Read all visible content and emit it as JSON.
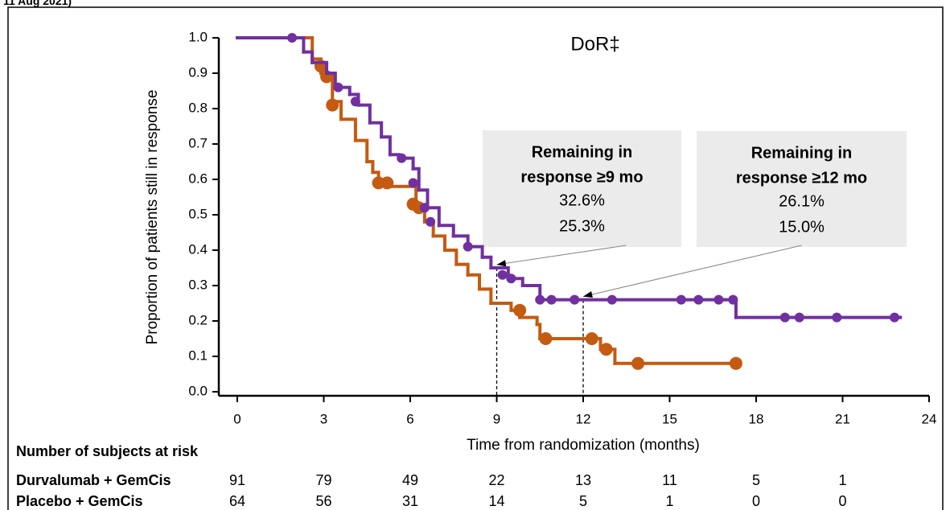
{
  "header": "11 Aug 2021)",
  "chart_data": {
    "type": "step",
    "title": "DoR‡",
    "x_label": "Time from randomization (months)",
    "y_label": "Proportion of patients still in response",
    "xlim": [
      0,
      24
    ],
    "ylim": [
      0,
      1
    ],
    "xticks": [
      0,
      3,
      6,
      9,
      12,
      15,
      18,
      21,
      24
    ],
    "yticks": [
      {
        "value": 0,
        "label": "0.0"
      },
      {
        "value": 0.1,
        "label": "0.1"
      },
      {
        "value": 0.2,
        "label": "0.2"
      },
      {
        "value": 0.3,
        "label": "0.3"
      },
      {
        "value": 0.4,
        "label": "0.4"
      },
      {
        "value": 0.5,
        "label": "0.5"
      },
      {
        "value": 0.6,
        "label": "0.6"
      },
      {
        "value": 0.7,
        "label": "0.7"
      },
      {
        "value": 0.8,
        "label": "0.8"
      },
      {
        "value": 0.9,
        "label": "0.9"
      },
      {
        "value": 1,
        "label": "1.0"
      }
    ],
    "series": [
      {
        "name": "Durvalumab + GemCis",
        "color": "#7030a0",
        "x": [
          0,
          1.9,
          2.3,
          2.6,
          3.1,
          3.4,
          3.9,
          4.2,
          4.6,
          5.0,
          5.3,
          5.6,
          6.1,
          6.3,
          6.6,
          7.0,
          7.5,
          8.0,
          8.5,
          8.8,
          9.4,
          9.9,
          10.5,
          16.9,
          17.3,
          23
        ],
        "y": [
          1.0,
          1.0,
          0.96,
          0.93,
          0.9,
          0.86,
          0.84,
          0.81,
          0.76,
          0.72,
          0.67,
          0.66,
          0.63,
          0.57,
          0.52,
          0.47,
          0.44,
          0.41,
          0.38,
          0.35,
          0.32,
          0.3,
          0.26,
          0.26,
          0.21,
          0.21
        ],
        "censored_x": [
          1.9,
          3.5,
          4.1,
          5.7,
          6.1,
          6.5,
          6.7,
          8.0,
          9.2,
          9.5,
          10.5,
          10.9,
          11.7,
          13.0,
          15.4,
          16.0,
          16.7,
          17.2,
          19.0,
          19.5,
          20.8,
          22.8
        ],
        "censored_y": [
          1.0,
          0.86,
          0.82,
          0.66,
          0.59,
          0.52,
          0.48,
          0.41,
          0.33,
          0.32,
          0.26,
          0.26,
          0.26,
          0.26,
          0.26,
          0.26,
          0.26,
          0.26,
          0.21,
          0.21,
          0.21,
          0.21
        ],
        "at_risk": [
          91,
          79,
          49,
          22,
          13,
          11,
          5,
          1
        ]
      },
      {
        "name": "Placebo + GemCis",
        "color": "#c55a11",
        "x": [
          0,
          2.2,
          2.6,
          2.9,
          3.3,
          3.6,
          4.1,
          4.5,
          4.7,
          4.9,
          5.3,
          6.2,
          6.5,
          6.8,
          7.2,
          7.6,
          8.0,
          8.4,
          8.8,
          9.5,
          9.8,
          10.4,
          10.5,
          12.0,
          12.6,
          13.1,
          17.3
        ],
        "y": [
          1.0,
          1.0,
          0.94,
          0.9,
          0.82,
          0.77,
          0.71,
          0.65,
          0.62,
          0.59,
          0.58,
          0.52,
          0.48,
          0.44,
          0.4,
          0.36,
          0.33,
          0.29,
          0.25,
          0.23,
          0.21,
          0.19,
          0.15,
          0.15,
          0.12,
          0.08,
          0.08
        ],
        "censored_x": [
          2.9,
          3.1,
          3.3,
          4.9,
          5.2,
          6.1,
          6.3,
          9.8,
          10.7,
          12.3,
          12.8,
          13.9,
          17.3
        ],
        "censored_y": [
          0.92,
          0.89,
          0.81,
          0.59,
          0.59,
          0.53,
          0.52,
          0.23,
          0.15,
          0.15,
          0.12,
          0.08,
          0.08
        ],
        "at_risk": [
          64,
          56,
          31,
          14,
          5,
          1,
          0,
          0
        ]
      }
    ],
    "at_risk_title": "Number of subjects at risk",
    "milestones": [
      {
        "x": 9,
        "line1": "Remaining in",
        "line2": "response ≥9 mo",
        "values": [
          "32.6%",
          "25.3%"
        ]
      },
      {
        "x": 12,
        "line1": "Remaining in",
        "line2": "response ≥12 mo",
        "values": [
          "26.1%",
          "15.0%"
        ]
      }
    ]
  }
}
